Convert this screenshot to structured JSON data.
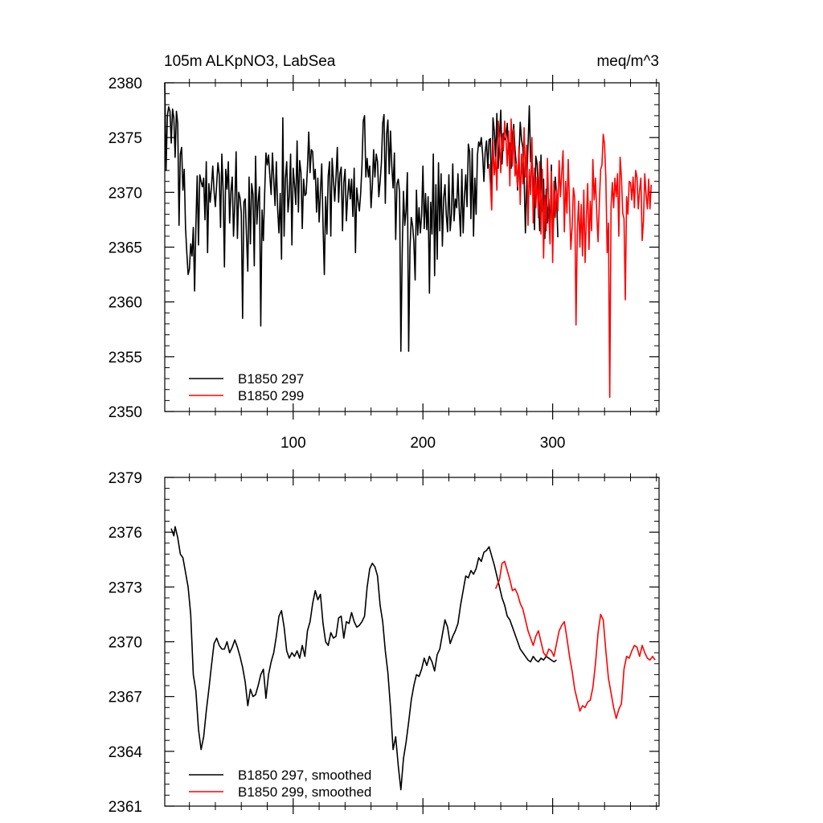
{
  "chart_data": [
    {
      "type": "line",
      "title_left": "105m ALKpNO3, LabSea",
      "title_right": "meq/m^3",
      "xlim": [
        1,
        382
      ],
      "ylim": [
        2350,
        2380
      ],
      "xticks": [
        100,
        200,
        300
      ],
      "yticks": [
        2350,
        2355,
        2360,
        2365,
        2370,
        2375,
        2380
      ],
      "grid": false,
      "legend_position": "bottom-left",
      "series": [
        {
          "name": "B1850 297",
          "color": "#000000",
          "x_start": 1,
          "values": [
            2380,
            2372,
            2377,
            2377.8,
            2377.4,
            2374.5,
            2377.6,
            2376.8,
            2373.2,
            2377.4,
            2376.3,
            2367,
            2373.5,
            2374.1,
            2370.2,
            2372.1,
            2366.8,
            2364.5,
            2362.5,
            2363,
            2365.3,
            2364.2,
            2366.8,
            2361,
            2367,
            2371.5,
            2365.2,
            2371.6,
            2371,
            2370.5,
            2371.3,
            2367.5,
            2372.8,
            2364.5,
            2370.8,
            2369.1,
            2370.5,
            2372.4,
            2370.1,
            2368.7,
            2370.7,
            2372.7,
            2371.6,
            2366.8,
            2373.5,
            2370.1,
            2363.2,
            2372.1,
            2370.3,
            2372.8,
            2367.2,
            2370.1,
            2371.4,
            2366,
            2368.9,
            2373.7,
            2365.8,
            2370,
            2369.5,
            2368.1,
            2358.5,
            2369.1,
            2369.4,
            2366,
            2362.8,
            2371.4,
            2365.3,
            2370.8,
            2369.8,
            2363.3,
            2373.3,
            2367.1,
            2369.2,
            2370.5,
            2357.8,
            2368.4,
            2365.6,
            2369.9,
            2373.6,
            2372.5,
            2373.4,
            2371.5,
            2369.8,
            2373.6,
            2371.2,
            2368.8,
            2372.8,
            2368.5,
            2366.3,
            2369.9,
            2363.9,
            2376.8,
            2366,
            2371.3,
            2372.8,
            2368.2,
            2369.7,
            2373.5,
            2365.2,
            2372.2,
            2370.7,
            2368.9,
            2374.7,
            2368.2,
            2372.9,
            2371.8,
            2366.7,
            2371.2,
            2369.7,
            2369.9,
            2372.3,
            2375.5,
            2371.8,
            2373.9,
            2373.7,
            2371.2,
            2372.1,
            2368.2,
            2371.3,
            2367.3,
            2370.1,
            2372.6,
            2367,
            2362.5,
            2369.6,
            2366.2,
            2371.5,
            2372.8,
            2366,
            2373.1,
            2371.2,
            2369.2,
            2371.4,
            2374.1,
            2369.1,
            2371.7,
            2372.3,
            2366.5,
            2370.9,
            2372.1,
            2367.4,
            2369.7,
            2371.2,
            2369.4,
            2371.2,
            2367.8,
            2372.2,
            2364.5,
            2370.4,
            2369.2,
            2368.3,
            2369.9,
            2372.4,
            2376.5,
            2377,
            2371.4,
            2373.1,
            2371.4,
            2372.4,
            2368.6,
            2370.6,
            2373.9,
            2371.4,
            2373.5,
            2372.8,
            2369.6,
            2371,
            2372.7,
            2376.3,
            2377.1,
            2369,
            2375.3,
            2376.6,
            2371.7,
            2375.6,
            2372.4,
            2370.4,
            2373.6,
            2365.7,
            2370.8,
            2371.2,
            2370,
            2355.5,
            2364.3,
            2370.1,
            2367,
            2368.3,
            2371.8,
            2355.5,
            2364.8,
            2367.7,
            2367,
            2365.5,
            2362,
            2370.2,
            2366.1,
            2368.6,
            2366.3,
            2367.9,
            2372.4,
            2366.7,
            2369.9,
            2366.6,
            2369.6,
            2360.8,
            2369.1,
            2366.2,
            2373.5,
            2362.4,
            2370.7,
            2363.9,
            2372.7,
            2366.5,
            2371.7,
            2365.1,
            2369.5,
            2370.7,
            2367.9,
            2366.4,
            2371.6,
            2366.5,
            2368,
            2372.6,
            2367.4,
            2369.4,
            2368.6,
            2371.7,
            2368.4,
            2366,
            2372.1,
            2366.3,
            2369.6,
            2371.6,
            2368.7,
            2374.4,
            2373.7,
            2367.6,
            2374,
            2366,
            2371.3,
            2368,
            2373.4,
            2374.6,
            2374.2,
            2375,
            2373.5,
            2371,
            2373.7,
            2374.7,
            2372.2,
            2374.8,
            2374.9,
            2369.2,
            2376.8,
            2375.6,
            2373.2,
            2377.2,
            2372.2,
            2374.8,
            2377.5,
            2372.6,
            2375.4,
            2374.8,
            2374.9,
            2376.3,
            2373.5,
            2374.5,
            2372.2,
            2375.1,
            2376.2,
            2373.9,
            2372.5,
            2370.2,
            2373.2,
            2376.4,
            2374.8,
            2374.1,
            2371.3,
            2366.3,
            2371,
            2374.2,
            2377.9,
            2372.8,
            2373.5,
            2370.6,
            2366.6,
            2373.3,
            2372.6,
            2370.1,
            2366.5,
            2373.4,
            2368.3,
            2371.2,
            2365.8,
            2370.3,
            2367.2,
            2369.4,
            2366.3,
            2372.5,
            2365.3,
            2368.2,
            2371.4,
            2369.8,
            2365.9
          ]
        },
        {
          "name": "B1850 299",
          "color": "#ff0000",
          "x_start": 251,
          "values": [
            2372.6,
            2370.8,
            2368.4,
            2374.8,
            2371.6,
            2373.2,
            2370.2,
            2376.5,
            2374.8,
            2371.8,
            2375.3,
            2373.8,
            2376.5,
            2374.9,
            2372.4,
            2375.6,
            2370.6,
            2376.7,
            2372.4,
            2375.8,
            2371.5,
            2372.6,
            2370.5,
            2374.2,
            2368.9,
            2373.5,
            2370.8,
            2375.9,
            2371.4,
            2374.3,
            2367,
            2372.1,
            2369.8,
            2375,
            2367.2,
            2372.2,
            2368.6,
            2371.4,
            2367.7,
            2372.8,
            2366.2,
            2372.1,
            2364,
            2369.7,
            2366.5,
            2373.1,
            2368.2,
            2365.3,
            2371.9,
            2363.6,
            2371,
            2367.7,
            2370.3,
            2368.3,
            2372.9,
            2369.6,
            2371.8,
            2373.8,
            2366.4,
            2371,
            2368.1,
            2373,
            2368.9,
            2364.8,
            2366.8,
            2370.4,
            2369.5,
            2357.9,
            2366.5,
            2369.2,
            2365,
            2368.9,
            2364.2,
            2370.2,
            2363.6,
            2367.8,
            2370.8,
            2364.8,
            2369.2,
            2366.5,
            2373,
            2369.3,
            2371.3,
            2368,
            2365.5,
            2369.1,
            2372.1,
            2372.5,
            2375.3,
            2374.4,
            2371.3,
            2364.5,
            2367.2,
            2351.3,
            2368.7,
            2370.9,
            2368.6,
            2371.3,
            2369.6,
            2371.7,
            2366,
            2373.2,
            2371.4,
            2368.1,
            2367.6,
            2360.2,
            2369.6,
            2368,
            2371,
            2370.9,
            2369.3,
            2371.4,
            2368.6,
            2372,
            2371.4,
            2368.5,
            2370.2,
            2371.3,
            2365.6,
            2367.4,
            2371.7,
            2369.8,
            2368.5,
            2371.2,
            2368.5,
            2370.7
          ]
        }
      ]
    },
    {
      "type": "line",
      "xlim": [
        1,
        382
      ],
      "ylim": [
        2361,
        2379
      ],
      "xticks": [
        100,
        200,
        300
      ],
      "yticks": [
        2361,
        2364,
        2367,
        2370,
        2373,
        2376,
        2379
      ],
      "grid": false,
      "legend_position": "bottom-left",
      "series": [
        {
          "name": "B1850 297, smoothed",
          "color": "#000000",
          "x_points": [
            6,
            8,
            9,
            11,
            13,
            15,
            17,
            19,
            21,
            23,
            25,
            27,
            29,
            31,
            33,
            35,
            37,
            39,
            41,
            43,
            45,
            47,
            49,
            51,
            53,
            55,
            57,
            59,
            61,
            63,
            65,
            67,
            69,
            71,
            73,
            75,
            77,
            79,
            81,
            83,
            85,
            87,
            89,
            91,
            93,
            95,
            97,
            99,
            101,
            103,
            105,
            107,
            109,
            111,
            113,
            115,
            117,
            119,
            121,
            123,
            125,
            127,
            129,
            131,
            133,
            135,
            137,
            139,
            141,
            143,
            145,
            147,
            149,
            151,
            153,
            155,
            157,
            159,
            161,
            163,
            165,
            167,
            169,
            171,
            173,
            175,
            177,
            179,
            181,
            183,
            185,
            187,
            189,
            191,
            193,
            195,
            197,
            199,
            201,
            203,
            205,
            207,
            209,
            211,
            213,
            215,
            217,
            219,
            221,
            223,
            225,
            227,
            229,
            231,
            233,
            235,
            237,
            239,
            241,
            243,
            245,
            247,
            249,
            251,
            253,
            255,
            257,
            259,
            261,
            263,
            265,
            267,
            269,
            271,
            273,
            275,
            277,
            279,
            281,
            283,
            285,
            287,
            289,
            291,
            293,
            295,
            297,
            299,
            301,
            303
          ],
          "values": [
            2376.2,
            2375.8,
            2376.3,
            2375.7,
            2374.8,
            2374.6,
            2373.8,
            2373.0,
            2371.5,
            2368.2,
            2367.3,
            2365.2,
            2364.1,
            2364.8,
            2366.2,
            2367.4,
            2368.7,
            2369.9,
            2370.2,
            2369.8,
            2369.6,
            2369.6,
            2370.0,
            2369.4,
            2369.7,
            2370.1,
            2369.7,
            2369.2,
            2368.6,
            2367.8,
            2366.5,
            2367.4,
            2367.0,
            2367.1,
            2367.6,
            2368.2,
            2368.5,
            2366.9,
            2368.2,
            2368.9,
            2369.4,
            2370.3,
            2371.4,
            2371.7,
            2370.8,
            2369.5,
            2369.1,
            2369.4,
            2369.2,
            2369.5,
            2369.1,
            2369.8,
            2369.2,
            2370.6,
            2371.1,
            2372.1,
            2372.8,
            2372.3,
            2372.6,
            2371.0,
            2370.0,
            2369.8,
            2370.5,
            2370.2,
            2370.3,
            2371.3,
            2371.4,
            2370.2,
            2371.1,
            2371.0,
            2371.6,
            2371.1,
            2370.8,
            2370.9,
            2371.1,
            2371.4,
            2373.0,
            2374.0,
            2374.3,
            2374.1,
            2373.6,
            2372.0,
            2371.1,
            2369.5,
            2368.3,
            2366.4,
            2364.1,
            2364.8,
            2363.2,
            2361.9,
            2363.6,
            2364.5,
            2365.6,
            2366.8,
            2367.6,
            2368.2,
            2368.1,
            2368.5,
            2369.1,
            2368.7,
            2369.2,
            2368.9,
            2368.4,
            2369.3,
            2369.6,
            2370.4,
            2371.2,
            2370.8,
            2369.9,
            2370.3,
            2370.6,
            2371.0,
            2372.0,
            2372.8,
            2373.6,
            2373.5,
            2373.9,
            2373.7,
            2374.0,
            2374.6,
            2374.4,
            2374.9,
            2375.0,
            2375.2,
            2374.7,
            2374.2,
            2373.6,
            2373.0,
            2372.4,
            2372.0,
            2371.4,
            2371.2,
            2370.8,
            2370.4,
            2370.0,
            2369.6,
            2369.4,
            2369.2,
            2369.0,
            2368.9,
            2369.2,
            2369.0,
            2368.9,
            2369.1,
            2369.0,
            2369.2,
            2369.1,
            2369.0,
            2368.9,
            2369.0
          ]
        },
        {
          "name": "B1850 299, smoothed",
          "color": "#ff0000",
          "x_points": [
            256,
            259,
            261,
            263,
            265,
            267,
            269,
            271,
            273,
            275,
            277,
            279,
            281,
            283,
            285,
            287,
            289,
            291,
            293,
            295,
            297,
            299,
            301,
            303,
            305,
            307,
            309,
            311,
            313,
            315,
            317,
            319,
            321,
            323,
            325,
            327,
            329,
            331,
            333,
            335,
            337,
            339,
            341,
            343,
            345,
            347,
            349,
            351,
            353,
            355,
            357,
            359,
            361,
            363,
            365,
            367,
            369,
            371,
            373,
            375,
            377,
            379
          ],
          "values": [
            2372.9,
            2373.4,
            2374.3,
            2374.4,
            2373.9,
            2373.4,
            2372.8,
            2372.9,
            2372.6,
            2372.1,
            2371.8,
            2371.2,
            2370.6,
            2370.2,
            2369.8,
            2370.3,
            2370.6,
            2370.0,
            2369.4,
            2369.2,
            2369.6,
            2369.5,
            2369.2,
            2369.9,
            2370.6,
            2370.9,
            2371.1,
            2370.2,
            2369.2,
            2368.4,
            2367.4,
            2366.8,
            2366.2,
            2366.5,
            2366.4,
            2366.7,
            2366.8,
            2367.5,
            2368.8,
            2370.5,
            2371.5,
            2371.2,
            2369.5,
            2368.0,
            2367.2,
            2366.4,
            2365.8,
            2366.3,
            2366.6,
            2368.5,
            2369.2,
            2369.1,
            2369.5,
            2369.8,
            2369.7,
            2369.2,
            2369.8,
            2369.4,
            2369.1,
            2369.0,
            2369.2,
            2369.0
          ]
        }
      ]
    }
  ]
}
